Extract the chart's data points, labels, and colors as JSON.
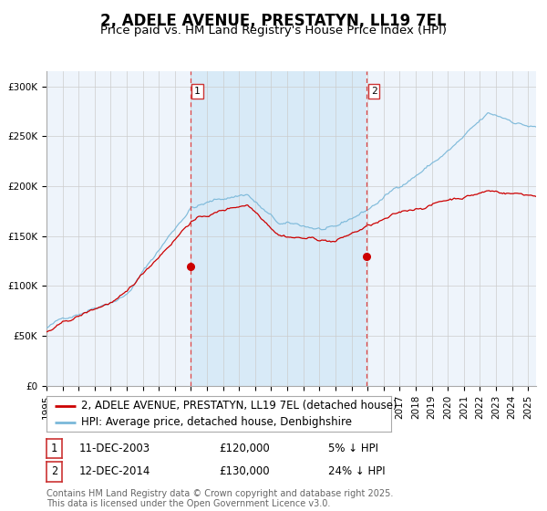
{
  "title": "2, ADELE AVENUE, PRESTATYN, LL19 7EL",
  "subtitle": "Price paid vs. HM Land Registry's House Price Index (HPI)",
  "ylabel_ticks": [
    "£0",
    "£50K",
    "£100K",
    "£150K",
    "£200K",
    "£250K",
    "£300K"
  ],
  "ytick_values": [
    0,
    50000,
    100000,
    150000,
    200000,
    250000,
    300000
  ],
  "ylim": [
    0,
    315000
  ],
  "xlim_start": 1995.0,
  "xlim_end": 2025.5,
  "sale1_date_num": 2003.95,
  "sale1_price": 120000,
  "sale2_date_num": 2014.95,
  "sale2_price": 130000,
  "sale1_date_str": "11-DEC-2003",
  "sale1_hpi_pct": "5% ↓ HPI",
  "sale2_date_str": "12-DEC-2014",
  "sale2_hpi_pct": "24% ↓ HPI",
  "hpi_color": "#7ab8d9",
  "price_color": "#cc0000",
  "bg_color": "#eef4fb",
  "shade_color": "#d8eaf7",
  "grid_color": "#cccccc",
  "dashed_line_color": "#dd4444",
  "legend_label_price": "2, ADELE AVENUE, PRESTATYN, LL19 7EL (detached house)",
  "legend_label_hpi": "HPI: Average price, detached house, Denbighshire",
  "footnote": "Contains HM Land Registry data © Crown copyright and database right 2025.\nThis data is licensed under the Open Government Licence v3.0.",
  "title_fontsize": 12,
  "subtitle_fontsize": 9.5,
  "tick_fontsize": 7.5,
  "legend_fontsize": 8.5,
  "table_fontsize": 8.5,
  "footnote_fontsize": 7
}
